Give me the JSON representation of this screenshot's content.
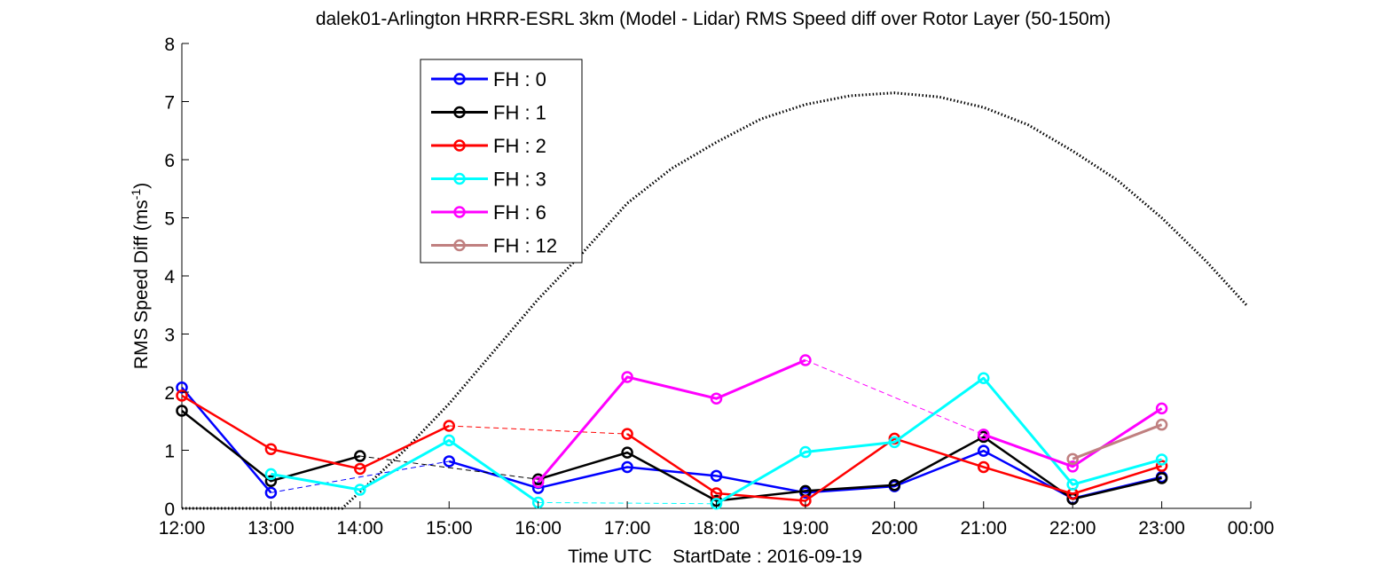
{
  "chart_data": {
    "type": "line",
    "title": "dalek01-Arlington HRRR-ESRL 3km (Model - Lidar) RMS Speed diff over Rotor Layer (50-150m)",
    "xlabel": "Time UTC    StartDate : 2016-09-19",
    "ylabel_main": "RMS Speed Diff (ms",
    "ylabel_sup": "-1",
    "ylabel_close": ")",
    "ylim": [
      0,
      8
    ],
    "yticks": [
      "0",
      "1",
      "2",
      "3",
      "4",
      "5",
      "6",
      "7",
      "8"
    ],
    "categories": [
      "12:00",
      "13:00",
      "14:00",
      "15:00",
      "16:00",
      "17:00",
      "18:00",
      "19:00",
      "20:00",
      "21:00",
      "22:00",
      "23:00",
      "00:00"
    ],
    "legend_position": "top-left",
    "series": [
      {
        "name": "FH : 0",
        "color": "#0000ff",
        "width": 2.5,
        "points": [
          [
            0,
            2.08
          ],
          [
            1,
            0.27
          ],
          [
            3,
            0.81
          ],
          [
            4,
            0.35
          ],
          [
            5,
            0.71
          ],
          [
            6,
            0.56
          ],
          [
            7,
            0.27
          ],
          [
            8,
            0.38
          ],
          [
            9,
            0.99
          ],
          [
            10,
            0.17
          ],
          [
            11,
            0.54
          ]
        ],
        "dashed": [
          [
            1,
            0.27
          ],
          [
            3,
            0.81
          ]
        ]
      },
      {
        "name": "FH : 1",
        "color": "#000000",
        "width": 2.5,
        "points": [
          [
            0,
            1.68
          ],
          [
            1,
            0.47
          ],
          [
            2,
            0.9
          ],
          [
            4,
            0.5
          ],
          [
            5,
            0.96
          ],
          [
            6,
            0.13
          ],
          [
            7,
            0.3
          ],
          [
            8,
            0.4
          ],
          [
            9,
            1.23
          ],
          [
            10,
            0.16
          ],
          [
            11,
            0.52
          ]
        ],
        "dashed": [
          [
            2,
            0.9
          ],
          [
            4,
            0.5
          ]
        ]
      },
      {
        "name": "FH : 2",
        "color": "#ff0000",
        "width": 2.5,
        "points": [
          [
            0,
            1.94
          ],
          [
            1,
            1.02
          ],
          [
            2,
            0.68
          ],
          [
            3,
            1.42
          ],
          [
            5,
            1.28
          ],
          [
            6,
            0.26
          ],
          [
            7,
            0.13
          ],
          [
            8,
            1.2
          ],
          [
            9,
            0.71
          ],
          [
            10,
            0.25
          ],
          [
            11,
            0.73
          ]
        ],
        "dashed": [
          [
            3,
            1.42
          ],
          [
            5,
            1.28
          ]
        ]
      },
      {
        "name": "FH : 3",
        "color": "#00ffff",
        "width": 3,
        "points": [
          [
            1,
            0.59
          ],
          [
            2,
            0.32
          ],
          [
            3,
            1.17
          ],
          [
            4,
            0.1
          ],
          [
            6,
            0.08
          ],
          [
            7,
            0.97
          ],
          [
            8,
            1.14
          ],
          [
            9,
            2.24
          ],
          [
            10,
            0.41
          ],
          [
            11,
            0.84
          ]
        ],
        "dashed": [
          [
            4,
            0.1
          ],
          [
            6,
            0.08
          ]
        ]
      },
      {
        "name": "FH : 6",
        "color": "#ff00ff",
        "width": 3,
        "points": [
          [
            4,
            0.45
          ],
          [
            5,
            2.26
          ],
          [
            6,
            1.89
          ],
          [
            7,
            2.55
          ],
          [
            9,
            1.27
          ],
          [
            10,
            0.72
          ],
          [
            11,
            1.72
          ]
        ],
        "dashed": [
          [
            7,
            2.55
          ],
          [
            9,
            1.27
          ]
        ]
      },
      {
        "name": "FH : 12",
        "color": "#c08080",
        "width": 3,
        "points": [
          [
            10,
            0.85
          ],
          [
            11,
            1.44
          ]
        ],
        "dashed": []
      }
    ],
    "dotted_curve": {
      "color": "#000000",
      "points": [
        [
          0,
          0.0
        ],
        [
          1,
          0.0
        ],
        [
          1.8,
          0.0
        ],
        [
          2.5,
          1.0
        ],
        [
          3,
          1.8
        ],
        [
          3.5,
          2.7
        ],
        [
          4,
          3.6
        ],
        [
          4.5,
          4.4
        ],
        [
          5,
          5.25
        ],
        [
          5.5,
          5.85
        ],
        [
          6,
          6.3
        ],
        [
          6.5,
          6.7
        ],
        [
          7,
          6.95
        ],
        [
          7.5,
          7.1
        ],
        [
          8,
          7.15
        ],
        [
          8.5,
          7.08
        ],
        [
          9,
          6.9
        ],
        [
          9.5,
          6.6
        ],
        [
          10,
          6.15
        ],
        [
          10.5,
          5.65
        ],
        [
          11,
          5.0
        ],
        [
          11.5,
          4.25
        ],
        [
          11.95,
          3.5
        ]
      ]
    }
  }
}
